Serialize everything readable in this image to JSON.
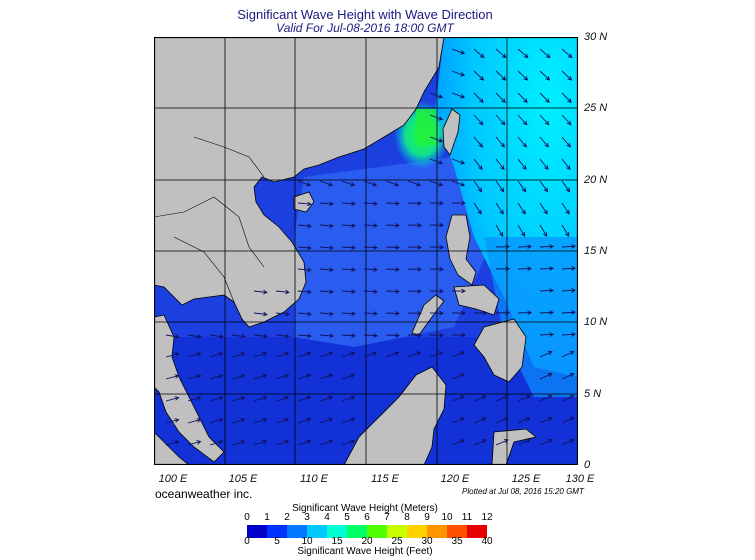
{
  "title": "Significant Wave Height with Wave Direction",
  "subtitle": "Valid For Jul-08-2016 18:00 GMT",
  "lat_labels": [
    "30 N",
    "25 N",
    "20 N",
    "15 N",
    "10 N",
    "5 N",
    "0"
  ],
  "lon_labels": [
    "100 E",
    "105 E",
    "110 E",
    "115 E",
    "120 E",
    "125 E",
    "130 E"
  ],
  "brand": "oceanweather inc.",
  "plotted_note": "Plotted at Jul 08, 2016 15:20 GMT",
  "colorbar": {
    "meters_title": "Significant Wave Height (Meters)",
    "meters_ticks": [
      "0",
      "1",
      "2",
      "3",
      "4",
      "5",
      "6",
      "7",
      "8",
      "9",
      "10",
      "11",
      "12"
    ],
    "feet_title": "Significant Wave Height (Feet)",
    "feet_ticks": [
      "0",
      "5",
      "10",
      "15",
      "20",
      "25",
      "30",
      "35",
      "40"
    ],
    "colors": [
      "#0000c8",
      "#0032ff",
      "#0078ff",
      "#00c8ff",
      "#00ffd2",
      "#00ff64",
      "#50ff00",
      "#c8ff00",
      "#ffd200",
      "#ff9600",
      "#ff5000",
      "#e60000"
    ]
  },
  "map": {
    "extent": {
      "lon_min": 100,
      "lon_max": 130,
      "lat_min": 0,
      "lat_max": 30
    },
    "land_color": "#c0c0c0",
    "sea_base_color": "#1c3fe0",
    "max_wave_area": "Taiwan Strait",
    "max_wave_color": "#00ff40"
  }
}
